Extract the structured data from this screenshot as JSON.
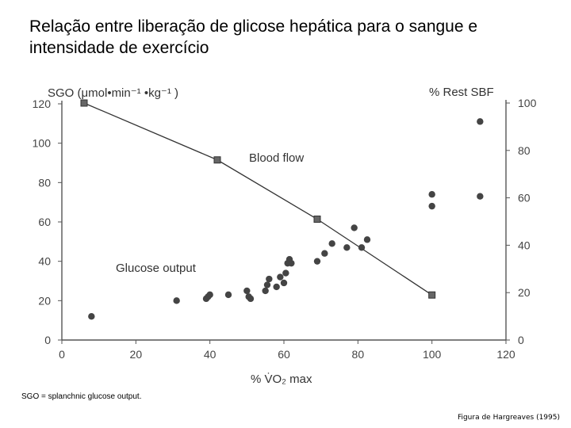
{
  "slide": {
    "title": "Relação entre liberação de glicose hepática para o sangue e intensidade de exercício",
    "footnote": "SGO = splanchnic glucose output.",
    "credit": "Figura de Hargreaves (1995)"
  },
  "chart_data": {
    "type": "scatter",
    "left_axis_label": "SGO (μmol•min⁻¹ •kg⁻¹ )",
    "right_axis_label": "% Rest SBF",
    "xlabel": "% V̇O₂ max",
    "xlim": [
      0,
      120
    ],
    "ylim_left": [
      0,
      120
    ],
    "ylim_right": [
      0,
      100
    ],
    "x_ticks": [
      "0",
      "20",
      "40",
      "60",
      "80",
      "100",
      "120"
    ],
    "y_left_ticks": [
      "0",
      "20",
      "40",
      "60",
      "80",
      "100",
      "120"
    ],
    "y_right_ticks": [
      "0",
      "20",
      "40",
      "60",
      "80",
      "100"
    ],
    "grid": false,
    "series": [
      {
        "name": "Blood flow",
        "marker": "square",
        "axis": "right",
        "points": [
          {
            "x": 6,
            "y": 100
          },
          {
            "x": 42,
            "y": 76
          },
          {
            "x": 69,
            "y": 51
          },
          {
            "x": 100,
            "y": 19
          }
        ]
      },
      {
        "name": "Glucose output",
        "marker": "circle",
        "axis": "left",
        "points": [
          {
            "x": 8,
            "y": 12
          },
          {
            "x": 31,
            "y": 20
          },
          {
            "x": 39,
            "y": 21
          },
          {
            "x": 39.5,
            "y": 22
          },
          {
            "x": 40,
            "y": 23
          },
          {
            "x": 45,
            "y": 23
          },
          {
            "x": 50,
            "y": 25
          },
          {
            "x": 50.5,
            "y": 22
          },
          {
            "x": 51,
            "y": 21
          },
          {
            "x": 55,
            "y": 25
          },
          {
            "x": 55.5,
            "y": 28
          },
          {
            "x": 56,
            "y": 31
          },
          {
            "x": 58,
            "y": 27
          },
          {
            "x": 59,
            "y": 32
          },
          {
            "x": 60,
            "y": 29
          },
          {
            "x": 60.5,
            "y": 34
          },
          {
            "x": 61,
            "y": 39
          },
          {
            "x": 61.5,
            "y": 41
          },
          {
            "x": 62,
            "y": 39
          },
          {
            "x": 69,
            "y": 40
          },
          {
            "x": 71,
            "y": 44
          },
          {
            "x": 73,
            "y": 49
          },
          {
            "x": 77,
            "y": 47
          },
          {
            "x": 79,
            "y": 57
          },
          {
            "x": 81,
            "y": 47
          },
          {
            "x": 82.5,
            "y": 51
          },
          {
            "x": 100,
            "y": 68
          },
          {
            "x": 100,
            "y": 74
          },
          {
            "x": 113,
            "y": 73
          },
          {
            "x": 113,
            "y": 111
          }
        ]
      }
    ]
  }
}
